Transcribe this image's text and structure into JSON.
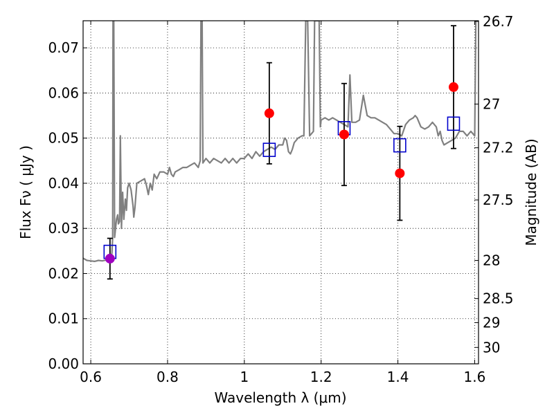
{
  "chart_data": {
    "type": "scatter",
    "title": "",
    "xlabel": "Wavelength  λ (μm)",
    "ylabel": "Flux  Fν  ( μJy )",
    "y2label": "Magnitude (AB)",
    "xlim": [
      0.58,
      1.61
    ],
    "ylim": [
      0.0,
      0.076
    ],
    "x_ticks": [
      0.6,
      0.8,
      1.0,
      1.2,
      1.4,
      1.6
    ],
    "x_tick_labels": [
      "0.6",
      "0.8",
      "1",
      "1.2",
      "1.4",
      "1.6"
    ],
    "y_ticks": [
      0.0,
      0.01,
      0.02,
      0.03,
      0.04,
      0.05,
      0.06,
      0.07
    ],
    "y_tick_labels": [
      "0.00",
      "0.01",
      "0.02",
      "0.03",
      "0.04",
      "0.05",
      "0.06",
      "0.07"
    ],
    "magnitude_ticks": [
      26.7,
      27,
      27.2,
      27.5,
      28,
      28.5,
      29,
      30
    ],
    "magnitude_tick_labels": [
      "26.7",
      "27",
      "27.2",
      "27.5",
      "28",
      "28.5",
      "29",
      "30"
    ],
    "grid": true,
    "colors": {
      "template": "#808080",
      "observed": "#ff0000",
      "observed_alt": "#a000c0",
      "model": "#0000cc",
      "errorbar": "#000000"
    },
    "series": [
      {
        "name": "template_spectrum",
        "style": "line",
        "points": [
          [
            0.58,
            0.0234
          ],
          [
            0.59,
            0.0229
          ],
          [
            0.6,
            0.0228
          ],
          [
            0.61,
            0.0227
          ],
          [
            0.62,
            0.0229
          ],
          [
            0.63,
            0.0228
          ],
          [
            0.64,
            0.023
          ],
          [
            0.645,
            0.0228
          ],
          [
            0.65,
            0.0232
          ],
          [
            0.655,
            0.0245
          ],
          [
            0.657,
            0.028
          ],
          [
            0.658,
            0.076
          ],
          [
            0.659,
            0.076
          ],
          [
            0.66,
            0.076
          ],
          [
            0.662,
            0.028
          ],
          [
            0.667,
            0.032
          ],
          [
            0.67,
            0.033
          ],
          [
            0.672,
            0.031
          ],
          [
            0.675,
            0.0315
          ],
          [
            0.677,
            0.0505
          ],
          [
            0.68,
            0.03
          ],
          [
            0.683,
            0.038
          ],
          [
            0.686,
            0.032
          ],
          [
            0.69,
            0.0365
          ],
          [
            0.693,
            0.034
          ],
          [
            0.696,
            0.039
          ],
          [
            0.7,
            0.04
          ],
          [
            0.705,
            0.0385
          ],
          [
            0.71,
            0.035
          ],
          [
            0.712,
            0.0325
          ],
          [
            0.715,
            0.0345
          ],
          [
            0.72,
            0.04
          ],
          [
            0.73,
            0.0405
          ],
          [
            0.74,
            0.041
          ],
          [
            0.745,
            0.0395
          ],
          [
            0.75,
            0.0375
          ],
          [
            0.755,
            0.04
          ],
          [
            0.76,
            0.0385
          ],
          [
            0.765,
            0.042
          ],
          [
            0.772,
            0.041
          ],
          [
            0.78,
            0.0425
          ],
          [
            0.79,
            0.0425
          ],
          [
            0.8,
            0.042
          ],
          [
            0.805,
            0.0435
          ],
          [
            0.81,
            0.042
          ],
          [
            0.815,
            0.0415
          ],
          [
            0.82,
            0.0425
          ],
          [
            0.83,
            0.043
          ],
          [
            0.84,
            0.0435
          ],
          [
            0.85,
            0.0435
          ],
          [
            0.86,
            0.044
          ],
          [
            0.87,
            0.0445
          ],
          [
            0.88,
            0.0435
          ],
          [
            0.885,
            0.045
          ],
          [
            0.887,
            0.076
          ],
          [
            0.89,
            0.076
          ],
          [
            0.892,
            0.0445
          ],
          [
            0.9,
            0.0455
          ],
          [
            0.91,
            0.0445
          ],
          [
            0.92,
            0.0455
          ],
          [
            0.93,
            0.045
          ],
          [
            0.94,
            0.0445
          ],
          [
            0.95,
            0.0455
          ],
          [
            0.96,
            0.0445
          ],
          [
            0.97,
            0.0455
          ],
          [
            0.98,
            0.0445
          ],
          [
            0.99,
            0.0455
          ],
          [
            1.0,
            0.0455
          ],
          [
            1.01,
            0.0465
          ],
          [
            1.02,
            0.0455
          ],
          [
            1.03,
            0.047
          ],
          [
            1.04,
            0.046
          ],
          [
            1.05,
            0.047
          ],
          [
            1.06,
            0.0475
          ],
          [
            1.07,
            0.048
          ],
          [
            1.08,
            0.0475
          ],
          [
            1.09,
            0.0485
          ],
          [
            1.1,
            0.0485
          ],
          [
            1.105,
            0.05
          ],
          [
            1.11,
            0.0495
          ],
          [
            1.115,
            0.047
          ],
          [
            1.12,
            0.0465
          ],
          [
            1.125,
            0.0475
          ],
          [
            1.13,
            0.049
          ],
          [
            1.14,
            0.05
          ],
          [
            1.15,
            0.0505
          ],
          [
            1.155,
            0.0505
          ],
          [
            1.16,
            0.076
          ],
          [
            1.165,
            0.076
          ],
          [
            1.17,
            0.0505
          ],
          [
            1.18,
            0.0515
          ],
          [
            1.183,
            0.076
          ],
          [
            1.195,
            0.076
          ],
          [
            1.198,
            0.0525
          ],
          [
            1.2,
            0.054
          ],
          [
            1.21,
            0.0545
          ],
          [
            1.22,
            0.054
          ],
          [
            1.23,
            0.0545
          ],
          [
            1.24,
            0.054
          ],
          [
            1.25,
            0.0535
          ],
          [
            1.26,
            0.053
          ],
          [
            1.27,
            0.0525
          ],
          [
            1.275,
            0.064
          ],
          [
            1.28,
            0.0535
          ],
          [
            1.29,
            0.0535
          ],
          [
            1.3,
            0.054
          ],
          [
            1.31,
            0.0595
          ],
          [
            1.32,
            0.055
          ],
          [
            1.33,
            0.0545
          ],
          [
            1.34,
            0.0545
          ],
          [
            1.35,
            0.054
          ],
          [
            1.36,
            0.0535
          ],
          [
            1.37,
            0.053
          ],
          [
            1.38,
            0.052
          ],
          [
            1.39,
            0.051
          ],
          [
            1.4,
            0.051
          ],
          [
            1.41,
            0.0505
          ],
          [
            1.42,
            0.053
          ],
          [
            1.43,
            0.054
          ],
          [
            1.44,
            0.0545
          ],
          [
            1.445,
            0.055
          ],
          [
            1.45,
            0.0545
          ],
          [
            1.46,
            0.0525
          ],
          [
            1.47,
            0.052
          ],
          [
            1.48,
            0.0525
          ],
          [
            1.49,
            0.0535
          ],
          [
            1.5,
            0.0525
          ],
          [
            1.505,
            0.0505
          ],
          [
            1.51,
            0.0515
          ],
          [
            1.515,
            0.0495
          ],
          [
            1.52,
            0.0485
          ],
          [
            1.53,
            0.049
          ],
          [
            1.54,
            0.0495
          ],
          [
            1.55,
            0.05
          ],
          [
            1.56,
            0.0515
          ],
          [
            1.57,
            0.0515
          ],
          [
            1.58,
            0.0505
          ],
          [
            1.59,
            0.0515
          ],
          [
            1.6,
            0.0505
          ],
          [
            1.603,
            0.076
          ],
          [
            1.61,
            0.076
          ]
        ]
      },
      {
        "name": "observed_flux",
        "style": "points",
        "points": [
          {
            "x": 0.65,
            "y": 0.0233,
            "err": 0.0045,
            "color_key": "observed_alt"
          },
          {
            "x": 1.065,
            "y": 0.0555,
            "err": 0.0112
          },
          {
            "x": 1.26,
            "y": 0.0508,
            "err": 0.0113
          },
          {
            "x": 1.405,
            "y": 0.0422,
            "err": 0.0104
          },
          {
            "x": 1.545,
            "y": 0.0613,
            "err": 0.0136
          }
        ]
      },
      {
        "name": "model_flux",
        "style": "squares",
        "points": [
          [
            0.65,
            0.0248
          ],
          [
            1.065,
            0.0474
          ],
          [
            1.26,
            0.0522
          ],
          [
            1.405,
            0.0484
          ],
          [
            1.545,
            0.0532
          ]
        ]
      }
    ]
  }
}
